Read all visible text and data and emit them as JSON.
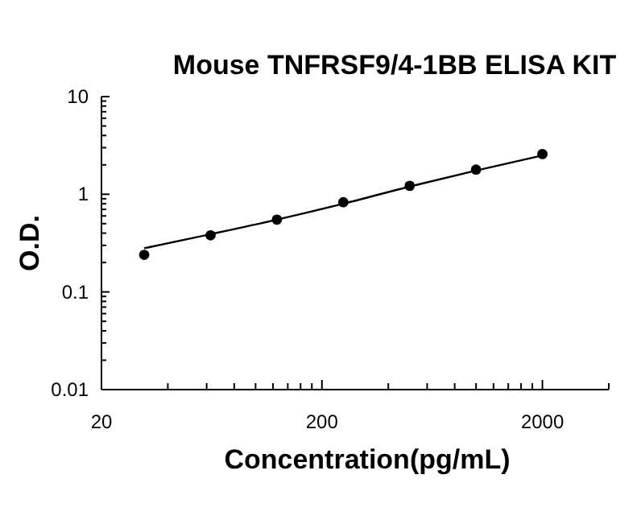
{
  "chart_data": {
    "type": "scatter",
    "title": "Mouse TNFRSF9/4-1BB ELISA KIT",
    "xlabel": "Concentration(pg/mL)",
    "ylabel": "O.D.",
    "log": "xy",
    "grid": false,
    "line_style": "solid",
    "xlim": [
      20,
      4000
    ],
    "ylim": [
      0.01,
      10
    ],
    "xticks": [
      20,
      {
        "value": 40,
        "label": null
      },
      {
        "value": 60,
        "label": null
      },
      {
        "value": 80,
        "label": null
      },
      {
        "value": 100,
        "label": null
      },
      {
        "value": 120,
        "label": null
      },
      {
        "value": 140,
        "label": null
      },
      {
        "value": 160,
        "label": null
      },
      {
        "value": 180,
        "label": null
      },
      200,
      {
        "value": 400,
        "label": null
      },
      {
        "value": 600,
        "label": null
      },
      {
        "value": 800,
        "label": null
      },
      {
        "value": 1000,
        "label": null
      },
      {
        "value": 1200,
        "label": null
      },
      {
        "value": 1400,
        "label": null
      },
      {
        "value": 1600,
        "label": null
      },
      {
        "value": 1800,
        "label": null
      },
      2000,
      {
        "value": 4000,
        "label": null
      }
    ],
    "yticks": [
      0.01,
      {
        "value": 0.02,
        "label": null
      },
      {
        "value": 0.03,
        "label": null
      },
      {
        "value": 0.04,
        "label": null
      },
      {
        "value": 0.05,
        "label": null
      },
      {
        "value": 0.06,
        "label": null
      },
      {
        "value": 0.07,
        "label": null
      },
      {
        "value": 0.08,
        "label": null
      },
      {
        "value": 0.09,
        "label": null
      },
      0.1,
      {
        "value": 0.2,
        "label": null
      },
      {
        "value": 0.3,
        "label": null
      },
      {
        "value": 0.4,
        "label": null
      },
      {
        "value": 0.5,
        "label": null
      },
      {
        "value": 0.6,
        "label": null
      },
      {
        "value": 0.7,
        "label": null
      },
      {
        "value": 0.8,
        "label": null
      },
      {
        "value": 0.9,
        "label": null
      },
      1,
      {
        "value": 2,
        "label": null
      },
      {
        "value": 3,
        "label": null
      },
      {
        "value": 4,
        "label": null
      },
      {
        "value": 5,
        "label": null
      },
      {
        "value": 6,
        "label": null
      },
      {
        "value": 7,
        "label": null
      },
      {
        "value": 8,
        "label": null
      },
      {
        "value": 9,
        "label": null
      },
      10
    ],
    "series": [
      {
        "marker": "circle",
        "color": "#000000",
        "x": [
          31.25,
          62.5,
          125,
          250,
          500,
          1000,
          2000
        ],
        "values": [
          0.24,
          0.38,
          0.55,
          0.83,
          1.22,
          1.79,
          2.58
        ]
      },
      {
        "type": "line",
        "marker": "none",
        "color": "#000000",
        "x": [
          31.25,
          62.5,
          125,
          250,
          500,
          1000,
          2000
        ],
        "values": [
          0.28,
          0.39,
          0.55,
          0.8,
          1.2,
          1.75,
          2.5
        ]
      }
    ]
  }
}
